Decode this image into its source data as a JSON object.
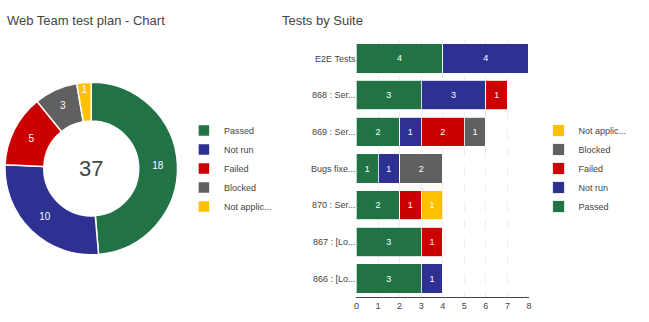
{
  "chart_data": [
    {
      "type": "pie",
      "title": "Web Team test plan - Chart",
      "categories": [
        "Passed",
        "Not run",
        "Failed",
        "Blocked",
        "Not applic..."
      ],
      "values": [
        18,
        10,
        5,
        3,
        1
      ],
      "colors": [
        "#217346",
        "#2E3192",
        "#CC0000",
        "#606060",
        "#FFC000"
      ],
      "data_labels": true,
      "annotations": [
        "37"
      ],
      "legend": "right"
    },
    {
      "type": "bar",
      "title": "Tests by Suite",
      "orientation": "horizontal",
      "stacked": true,
      "categories": [
        "E2E Tests",
        "868 : Ser...",
        "869 : Ser...",
        "Bugs fixe...",
        "870 : Ser...",
        "867 : [Lo...",
        "866 : [Lo..."
      ],
      "series": [
        {
          "name": "Passed",
          "color": "#217346",
          "values": [
            4,
            3,
            2,
            1,
            2,
            3,
            3
          ]
        },
        {
          "name": "Not run",
          "color": "#2E3192",
          "values": [
            4,
            3,
            1,
            1,
            0,
            0,
            1
          ]
        },
        {
          "name": "Failed",
          "color": "#CC0000",
          "values": [
            0,
            1,
            2,
            0,
            1,
            1,
            0
          ]
        },
        {
          "name": "Blocked",
          "color": "#606060",
          "values": [
            0,
            0,
            1,
            2,
            0,
            0,
            0
          ]
        },
        {
          "name": "Not applic...",
          "color": "#FFC000",
          "values": [
            0,
            0,
            0,
            0,
            1,
            0,
            0
          ]
        }
      ],
      "xlim": [
        0,
        8
      ],
      "xticks": [
        0,
        1,
        2,
        3,
        4,
        5,
        6,
        7,
        8
      ],
      "grid": true,
      "data_labels": true,
      "legend": "right"
    }
  ]
}
